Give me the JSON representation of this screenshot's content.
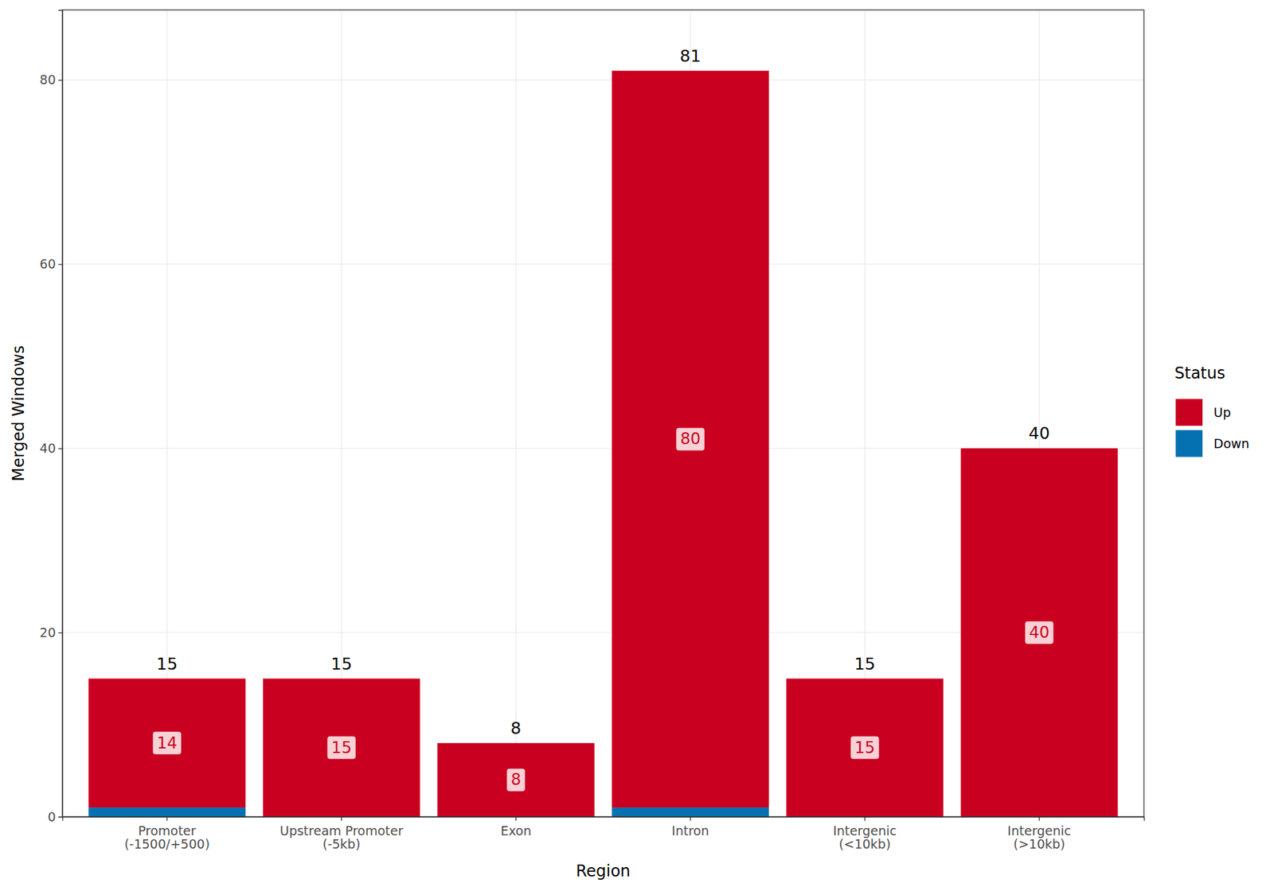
{
  "chart_data": {
    "type": "bar",
    "stacked": true,
    "grid": true,
    "legend": "right",
    "x_label": "Region",
    "y_label": "Merged Windows",
    "legend_title": "Status",
    "categories": [
      "Promoter\n(-1500/+500)",
      "Upstream Promoter\n(-5kb)",
      "Exon",
      "Intron",
      "Intergenic\n(<10kb)",
      "Intergenic\n(>10kb)"
    ],
    "series": [
      {
        "name": "Up",
        "color": "#CA0020",
        "values": [
          14,
          15,
          8,
          80,
          15,
          40
        ],
        "data_labels": true
      },
      {
        "name": "Down",
        "color": "#0571B0",
        "values": [
          1,
          0,
          0,
          1,
          0,
          0
        ],
        "data_labels": false
      }
    ],
    "totals": [
      15,
      15,
      8,
      81,
      15,
      40
    ],
    "ylim": [
      0,
      87.6
    ],
    "yticks": [
      0,
      20,
      40,
      60,
      80
    ]
  }
}
